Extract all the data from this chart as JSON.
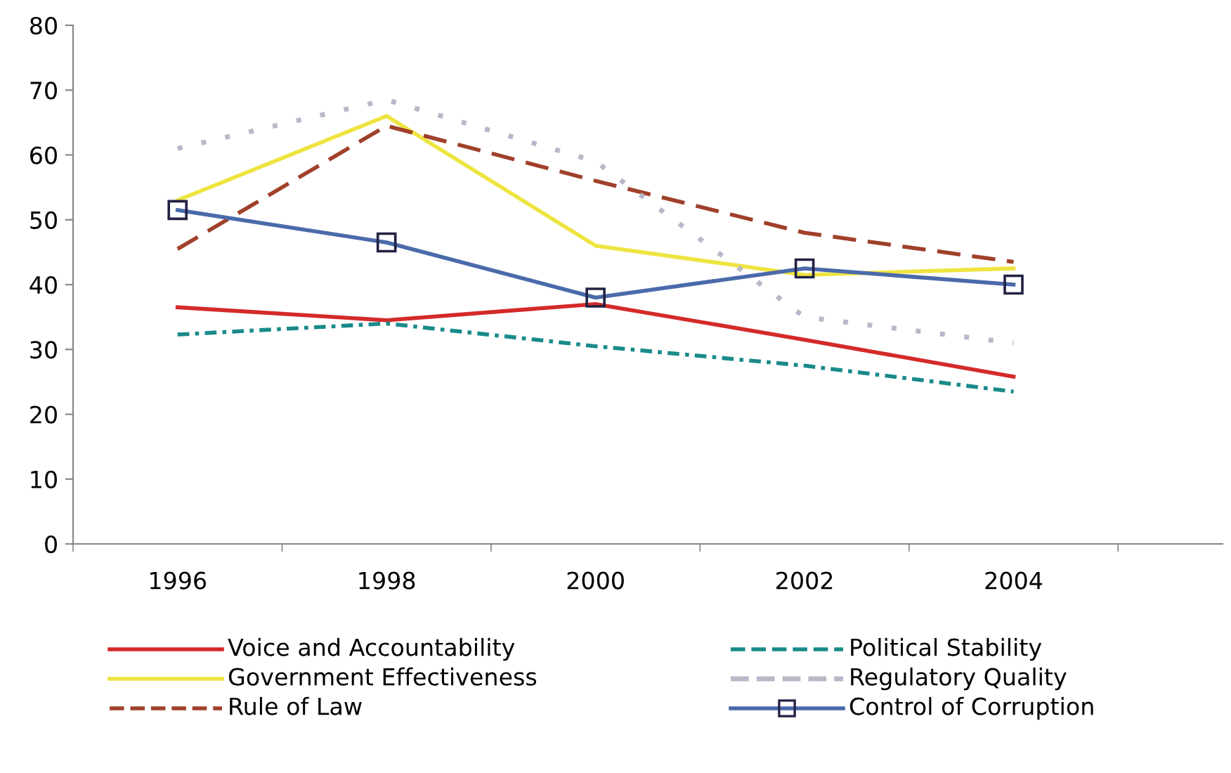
{
  "chart_data": {
    "type": "line",
    "categories": [
      "1996",
      "1998",
      "2000",
      "2002",
      "2004"
    ],
    "series": [
      {
        "name": "Voice and Accountability",
        "color": "#d42a2a",
        "values": [
          36.5,
          34.5,
          37,
          31.5,
          25.8
        ],
        "line_style": "solid",
        "marker": "none"
      },
      {
        "name": "Government Effectiveness",
        "color": "#eee440",
        "values": [
          53,
          66,
          46,
          41.5,
          42.5
        ],
        "line_style": "solid",
        "marker": "none"
      },
      {
        "name": "Rule of Law",
        "color": "#a0402a",
        "values": [
          45.5,
          64.5,
          56,
          48,
          43.5
        ],
        "line_style": "dashed",
        "marker": "none"
      },
      {
        "name": "Political Stability",
        "color": "#1a8a8a",
        "values": [
          32.3,
          34,
          30.5,
          27.5,
          23.5
        ],
        "line_style": "dashdot",
        "marker": "none"
      },
      {
        "name": "Regulatory Quality",
        "color": "#b8b8c8",
        "values": [
          61,
          68.5,
          59,
          35,
          31
        ],
        "line_style": "dotted",
        "marker": "none"
      },
      {
        "name": "Control of Corruption",
        "color": "#4a6aaa",
        "values": [
          51.5,
          46.5,
          38,
          42.5,
          40
        ],
        "line_style": "solid",
        "marker": "square"
      }
    ],
    "ylim": [
      0,
      80
    ],
    "yticks": [
      0,
      10,
      20,
      30,
      40,
      50,
      60,
      70,
      80
    ],
    "grid": false,
    "legend": "bottom"
  }
}
